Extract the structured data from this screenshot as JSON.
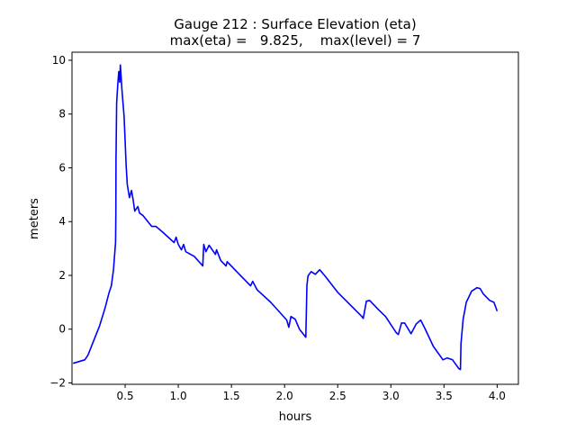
{
  "chart_data": {
    "type": "line",
    "title": "Gauge 212 : Surface Elevation (eta)",
    "subtitle": "max(eta) =   9.825,    max(level) = 7",
    "xlabel": "hours",
    "ylabel": "meters",
    "xlim": [
      0.0,
      4.2
    ],
    "ylim": [
      -2.05,
      10.3
    ],
    "xticks": [
      0.5,
      1.0,
      1.5,
      2.0,
      2.5,
      3.0,
      3.5,
      4.0
    ],
    "xtick_labels": [
      "0.5",
      "1.0",
      "1.5",
      "2.0",
      "2.5",
      "3.0",
      "3.5",
      "4.0"
    ],
    "yticks": [
      -2,
      0,
      2,
      4,
      6,
      8,
      10
    ],
    "ytick_labels": [
      "−2",
      "0",
      "2",
      "4",
      "6",
      "8",
      "10"
    ],
    "grid": false,
    "series": [
      {
        "name": "eta",
        "color": "#0000ff",
        "x": [
          0.01,
          0.12,
          0.15,
          0.2,
          0.26,
          0.31,
          0.35,
          0.37,
          0.39,
          0.41,
          0.412,
          0.414,
          0.415,
          0.42,
          0.43,
          0.44,
          0.45,
          0.455,
          0.465,
          0.47,
          0.49,
          0.51,
          0.52,
          0.54,
          0.56,
          0.575,
          0.59,
          0.62,
          0.635,
          0.67,
          0.71,
          0.75,
          0.79,
          0.85,
          0.96,
          0.98,
          1.0,
          1.03,
          1.05,
          1.07,
          1.15,
          1.23,
          1.24,
          1.26,
          1.29,
          1.35,
          1.36,
          1.4,
          1.45,
          1.46,
          1.55,
          1.68,
          1.7,
          1.74,
          1.87,
          2.02,
          2.04,
          2.06,
          2.1,
          2.14,
          2.2,
          2.21,
          2.22,
          2.25,
          2.29,
          2.33,
          2.38,
          2.5,
          2.72,
          2.74,
          2.77,
          2.8,
          2.89,
          2.95,
          3.05,
          3.07,
          3.1,
          3.13,
          3.19,
          3.24,
          3.28,
          3.32,
          3.4,
          3.49,
          3.53,
          3.58,
          3.64,
          3.655,
          3.66,
          3.68,
          3.71,
          3.76,
          3.81,
          3.84,
          3.87,
          3.93,
          3.97,
          4.0
        ],
        "y": [
          -1.27,
          -1.14,
          -0.97,
          -0.47,
          0.13,
          0.77,
          1.37,
          1.61,
          2.21,
          3.22,
          4.22,
          6.4,
          6.57,
          8.4,
          9.08,
          9.58,
          9.18,
          9.825,
          9.25,
          8.9,
          7.9,
          6.06,
          5.39,
          4.89,
          5.16,
          4.82,
          4.39,
          4.56,
          4.32,
          4.22,
          4.02,
          3.82,
          3.82,
          3.62,
          3.22,
          3.42,
          3.15,
          2.95,
          3.15,
          2.88,
          2.71,
          2.35,
          3.15,
          2.88,
          3.12,
          2.78,
          2.95,
          2.55,
          2.35,
          2.51,
          2.14,
          1.61,
          1.78,
          1.47,
          1.0,
          0.34,
          0.07,
          0.47,
          0.37,
          0.0,
          -0.3,
          1.61,
          1.98,
          2.14,
          2.04,
          2.21,
          1.98,
          1.37,
          0.5,
          0.4,
          1.04,
          1.07,
          0.7,
          0.47,
          -0.13,
          -0.2,
          0.23,
          0.23,
          -0.17,
          0.2,
          0.34,
          0.03,
          -0.64,
          -1.14,
          -1.07,
          -1.14,
          -1.47,
          -1.5,
          -0.54,
          0.37,
          1.0,
          1.41,
          1.54,
          1.51,
          1.31,
          1.07,
          1.0,
          0.67
        ]
      }
    ]
  }
}
